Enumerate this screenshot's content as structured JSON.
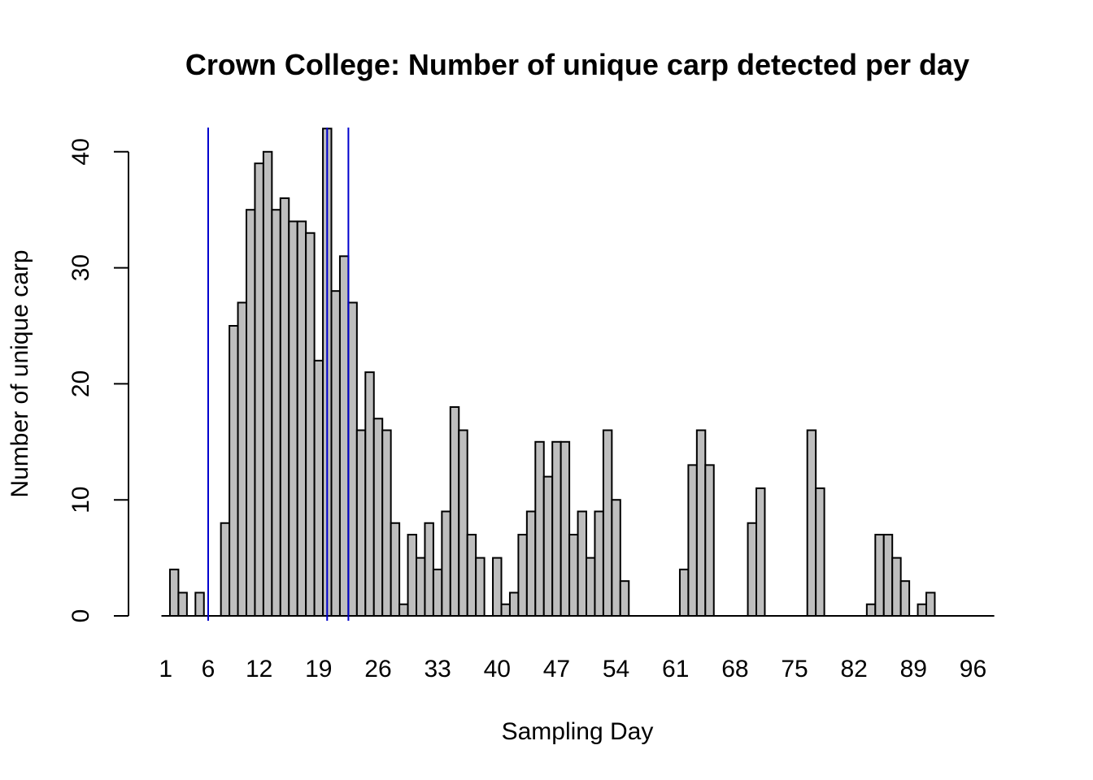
{
  "chart_data": {
    "type": "bar",
    "title": "Crown College: Number of unique carp detected per day",
    "xlabel": "Sampling Day",
    "ylabel": "Number of unique carp",
    "ylim": [
      0,
      42
    ],
    "y_ticks": [
      0,
      10,
      20,
      30,
      40
    ],
    "x_tick_labels": [
      "1",
      "6",
      "12",
      "19",
      "26",
      "33",
      "40",
      "47",
      "54",
      "61",
      "68",
      "75",
      "82",
      "89",
      "96"
    ],
    "x_tick_days": [
      1,
      6,
      12,
      19,
      26,
      33,
      40,
      47,
      54,
      61,
      68,
      75,
      82,
      89,
      96
    ],
    "days": [
      1,
      2,
      3,
      4,
      5,
      6,
      7,
      8,
      9,
      10,
      11,
      12,
      13,
      14,
      15,
      16,
      17,
      18,
      19,
      20,
      21,
      22,
      23,
      24,
      25,
      26,
      27,
      28,
      29,
      30,
      31,
      32,
      33,
      34,
      35,
      36,
      37,
      38,
      39,
      40,
      41,
      42,
      43,
      44,
      45,
      46,
      47,
      48,
      49,
      50,
      51,
      52,
      53,
      54,
      55,
      56,
      57,
      58,
      59,
      60,
      61,
      62,
      63,
      64,
      65,
      66,
      67,
      68,
      69,
      70,
      71,
      72,
      73,
      74,
      75,
      76,
      77,
      78,
      79,
      80,
      81,
      82,
      83,
      84,
      85,
      86,
      87,
      88,
      89,
      90,
      91,
      92,
      93,
      94,
      95,
      96,
      97,
      98
    ],
    "values": [
      0,
      4,
      2,
      0,
      2,
      0,
      0,
      8,
      25,
      27,
      35,
      39,
      40,
      35,
      36,
      34,
      34,
      33,
      22,
      42,
      28,
      31,
      27,
      16,
      21,
      17,
      16,
      8,
      1,
      7,
      5,
      8,
      4,
      9,
      18,
      16,
      7,
      5,
      0,
      5,
      1,
      2,
      7,
      9,
      15,
      12,
      15,
      15,
      7,
      9,
      5,
      9,
      16,
      10,
      3,
      0,
      0,
      0,
      0,
      0,
      0,
      4,
      13,
      16,
      13,
      0,
      0,
      0,
      0,
      8,
      11,
      0,
      0,
      0,
      0,
      0,
      16,
      11,
      0,
      0,
      0,
      0,
      0,
      1,
      7,
      7,
      5,
      3,
      0,
      1,
      2,
      0,
      0,
      0,
      0,
      0,
      0,
      0
    ],
    "vertical_lines": [
      6,
      20,
      22.5
    ],
    "vertical_line_color": "#0000cd",
    "bar_fill": "#bebebe",
    "bar_stroke": "#000000",
    "grid": false,
    "legend": "none"
  }
}
